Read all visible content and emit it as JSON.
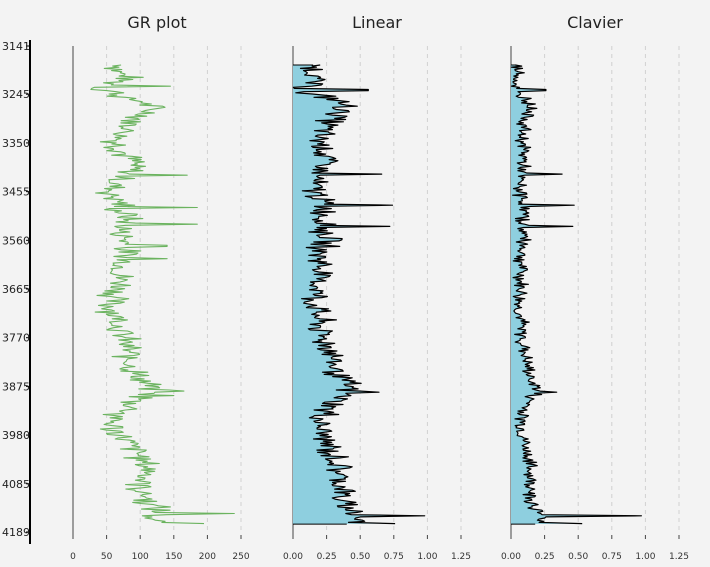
{
  "chart_data": {
    "type": "line",
    "depth_axis": {
      "range": [
        3141,
        4189
      ],
      "reversed": true,
      "tick_labels": [
        "3141",
        "3245",
        "3350",
        "3455",
        "3560",
        "3665",
        "3770",
        "3875",
        "3980",
        "4085",
        "4189"
      ],
      "ticks": [
        3141,
        3245,
        3350,
        3455,
        3560,
        3665,
        3770,
        3875,
        3980,
        4085,
        4189
      ]
    },
    "panels": [
      {
        "title": "GR plot",
        "xlim": [
          0,
          250
        ],
        "x_ticks": [
          0,
          50,
          100,
          150,
          200,
          250
        ],
        "x_tick_labels": [
          "0",
          "50",
          "100",
          "150",
          "200",
          "250"
        ],
        "line_color": "#6bb35f",
        "fill": false,
        "grid": "vertical dashed",
        "profile": [
          {
            "depth": 3182,
            "value": 72
          },
          {
            "depth": 3196,
            "value": 68
          },
          {
            "depth": 3210,
            "value": 80
          },
          {
            "depth": 3224,
            "value": 60
          },
          {
            "depth": 3232,
            "value": 30
          },
          {
            "depth": 3240,
            "value": 62
          },
          {
            "depth": 3252,
            "value": 70
          },
          {
            "depth": 3262,
            "value": 108
          },
          {
            "depth": 3276,
            "value": 115
          },
          {
            "depth": 3290,
            "value": 110
          },
          {
            "depth": 3306,
            "value": 85
          },
          {
            "depth": 3325,
            "value": 80
          },
          {
            "depth": 3345,
            "value": 65
          },
          {
            "depth": 3368,
            "value": 72
          },
          {
            "depth": 3390,
            "value": 90
          },
          {
            "depth": 3410,
            "value": 85
          },
          {
            "depth": 3430,
            "value": 70
          },
          {
            "depth": 3445,
            "value": 60
          },
          {
            "depth": 3460,
            "value": 55
          },
          {
            "depth": 3478,
            "value": 72
          },
          {
            "depth": 3495,
            "value": 65
          },
          {
            "depth": 3510,
            "value": 85
          },
          {
            "depth": 3525,
            "value": 75
          },
          {
            "depth": 3545,
            "value": 70
          },
          {
            "depth": 3560,
            "value": 80
          },
          {
            "depth": 3580,
            "value": 75
          },
          {
            "depth": 3600,
            "value": 78
          },
          {
            "depth": 3625,
            "value": 70
          },
          {
            "depth": 3645,
            "value": 72
          },
          {
            "depth": 3662,
            "value": 72
          },
          {
            "depth": 3680,
            "value": 60
          },
          {
            "depth": 3700,
            "value": 55
          },
          {
            "depth": 3720,
            "value": 65
          },
          {
            "depth": 3745,
            "value": 70
          },
          {
            "depth": 3765,
            "value": 72
          },
          {
            "depth": 3790,
            "value": 82
          },
          {
            "depth": 3812,
            "value": 82
          },
          {
            "depth": 3838,
            "value": 88
          },
          {
            "depth": 3860,
            "value": 100
          },
          {
            "depth": 3878,
            "value": 118
          },
          {
            "depth": 3892,
            "value": 110
          },
          {
            "depth": 3910,
            "value": 90
          },
          {
            "depth": 3925,
            "value": 85
          },
          {
            "depth": 3940,
            "value": 65
          },
          {
            "depth": 3955,
            "value": 55
          },
          {
            "depth": 3975,
            "value": 65
          },
          {
            "depth": 3995,
            "value": 80
          },
          {
            "depth": 4015,
            "value": 95
          },
          {
            "depth": 4040,
            "value": 105
          },
          {
            "depth": 4060,
            "value": 115
          },
          {
            "depth": 4080,
            "value": 105
          },
          {
            "depth": 4095,
            "value": 100
          },
          {
            "depth": 4110,
            "value": 108
          },
          {
            "depth": 4125,
            "value": 110
          },
          {
            "depth": 4140,
            "value": 125
          },
          {
            "depth": 4160,
            "value": 120
          },
          {
            "depth": 4172,
            "value": 115
          }
        ],
        "spikes": [
          {
            "depth": 3232,
            "value": 28
          },
          {
            "depth": 3228,
            "value": 145
          },
          {
            "depth": 3420,
            "value": 170
          },
          {
            "depth": 3490,
            "value": 185
          },
          {
            "depth": 3525,
            "value": 185
          },
          {
            "depth": 3572,
            "value": 140
          },
          {
            "depth": 3600,
            "value": 140
          },
          {
            "depth": 3885,
            "value": 165
          },
          {
            "depth": 3895,
            "value": 150
          },
          {
            "depth": 3936,
            "value": 45
          },
          {
            "depth": 4150,
            "value": 240
          },
          {
            "depth": 4172,
            "value": 195
          }
        ]
      },
      {
        "title": "Linear",
        "xlim": [
          0,
          1.25
        ],
        "x_ticks": [
          0,
          0.25,
          0.5,
          0.75,
          1.0,
          1.25
        ],
        "x_tick_labels": [
          "0.00",
          "0.25",
          "0.50",
          "0.75",
          "1.00",
          "1.25"
        ],
        "line_color": "#000000",
        "fill": true,
        "fill_color": "#8ecfdf",
        "grid": "vertical dashed",
        "profile": [
          {
            "depth": 3182,
            "value": 0.15
          },
          {
            "depth": 3200,
            "value": 0.17
          },
          {
            "depth": 3220,
            "value": 0.15
          },
          {
            "depth": 3240,
            "value": 0.02
          },
          {
            "depth": 3255,
            "value": 0.32
          },
          {
            "depth": 3270,
            "value": 0.38
          },
          {
            "depth": 3290,
            "value": 0.35
          },
          {
            "depth": 3310,
            "value": 0.25
          },
          {
            "depth": 3335,
            "value": 0.2
          },
          {
            "depth": 3360,
            "value": 0.22
          },
          {
            "depth": 3385,
            "value": 0.25
          },
          {
            "depth": 3410,
            "value": 0.2
          },
          {
            "depth": 3440,
            "value": 0.15
          },
          {
            "depth": 3470,
            "value": 0.2
          },
          {
            "depth": 3500,
            "value": 0.25
          },
          {
            "depth": 3530,
            "value": 0.22
          },
          {
            "depth": 3560,
            "value": 0.25
          },
          {
            "depth": 3590,
            "value": 0.2
          },
          {
            "depth": 3620,
            "value": 0.22
          },
          {
            "depth": 3650,
            "value": 0.18
          },
          {
            "depth": 3665,
            "value": 0.2
          },
          {
            "depth": 3690,
            "value": 0.15
          },
          {
            "depth": 3715,
            "value": 0.18
          },
          {
            "depth": 3745,
            "value": 0.2
          },
          {
            "depth": 3770,
            "value": 0.22
          },
          {
            "depth": 3800,
            "value": 0.3
          },
          {
            "depth": 3830,
            "value": 0.3
          },
          {
            "depth": 3855,
            "value": 0.35
          },
          {
            "depth": 3880,
            "value": 0.42
          },
          {
            "depth": 3900,
            "value": 0.35
          },
          {
            "depth": 3925,
            "value": 0.25
          },
          {
            "depth": 3950,
            "value": 0.2
          },
          {
            "depth": 3975,
            "value": 0.22
          },
          {
            "depth": 4000,
            "value": 0.25
          },
          {
            "depth": 4025,
            "value": 0.3
          },
          {
            "depth": 4050,
            "value": 0.35
          },
          {
            "depth": 4075,
            "value": 0.35
          },
          {
            "depth": 4100,
            "value": 0.38
          },
          {
            "depth": 4125,
            "value": 0.35
          },
          {
            "depth": 4145,
            "value": 0.45
          },
          {
            "depth": 4165,
            "value": 0.5
          },
          {
            "depth": 4172,
            "value": 0.4
          }
        ],
        "spikes": [
          {
            "depth": 3236,
            "value": 0.56
          },
          {
            "depth": 3418,
            "value": 0.66
          },
          {
            "depth": 3485,
            "value": 0.74
          },
          {
            "depth": 3530,
            "value": 0.72
          },
          {
            "depth": 3888,
            "value": 0.64
          },
          {
            "depth": 4153,
            "value": 0.98
          },
          {
            "depth": 4172,
            "value": 0.76
          }
        ]
      },
      {
        "title": "Clavier",
        "xlim": [
          0,
          1.25
        ],
        "x_ticks": [
          0,
          0.25,
          0.5,
          0.75,
          1.0,
          1.25
        ],
        "x_tick_labels": [
          "0.00",
          "0.25",
          "0.50",
          "0.75",
          "1.00",
          "1.25"
        ],
        "line_color": "#000000",
        "fill": true,
        "fill_color": "#8ecfdf",
        "grid": "vertical dashed",
        "profile": [
          {
            "depth": 3182,
            "value": 0.04
          },
          {
            "depth": 3200,
            "value": 0.06
          },
          {
            "depth": 3220,
            "value": 0.04
          },
          {
            "depth": 3240,
            "value": 0.03
          },
          {
            "depth": 3255,
            "value": 0.12
          },
          {
            "depth": 3270,
            "value": 0.15
          },
          {
            "depth": 3290,
            "value": 0.13
          },
          {
            "depth": 3310,
            "value": 0.1
          },
          {
            "depth": 3335,
            "value": 0.08
          },
          {
            "depth": 3360,
            "value": 0.09
          },
          {
            "depth": 3385,
            "value": 0.1
          },
          {
            "depth": 3410,
            "value": 0.08
          },
          {
            "depth": 3440,
            "value": 0.06
          },
          {
            "depth": 3470,
            "value": 0.08
          },
          {
            "depth": 3500,
            "value": 0.1
          },
          {
            "depth": 3530,
            "value": 0.09
          },
          {
            "depth": 3560,
            "value": 0.1
          },
          {
            "depth": 3590,
            "value": 0.08
          },
          {
            "depth": 3620,
            "value": 0.08
          },
          {
            "depth": 3650,
            "value": 0.07
          },
          {
            "depth": 3665,
            "value": 0.08
          },
          {
            "depth": 3690,
            "value": 0.06
          },
          {
            "depth": 3715,
            "value": 0.06
          },
          {
            "depth": 3745,
            "value": 0.08
          },
          {
            "depth": 3770,
            "value": 0.08
          },
          {
            "depth": 3800,
            "value": 0.1
          },
          {
            "depth": 3830,
            "value": 0.12
          },
          {
            "depth": 3855,
            "value": 0.14
          },
          {
            "depth": 3880,
            "value": 0.2
          },
          {
            "depth": 3900,
            "value": 0.15
          },
          {
            "depth": 3925,
            "value": 0.1
          },
          {
            "depth": 3950,
            "value": 0.08
          },
          {
            "depth": 3975,
            "value": 0.09
          },
          {
            "depth": 4000,
            "value": 0.1
          },
          {
            "depth": 4025,
            "value": 0.12
          },
          {
            "depth": 4050,
            "value": 0.14
          },
          {
            "depth": 4075,
            "value": 0.14
          },
          {
            "depth": 4100,
            "value": 0.16
          },
          {
            "depth": 4125,
            "value": 0.14
          },
          {
            "depth": 4145,
            "value": 0.2
          },
          {
            "depth": 4165,
            "value": 0.25
          },
          {
            "depth": 4172,
            "value": 0.18
          }
        ],
        "spikes": [
          {
            "depth": 3236,
            "value": 0.26
          },
          {
            "depth": 3418,
            "value": 0.38
          },
          {
            "depth": 3485,
            "value": 0.47
          },
          {
            "depth": 3530,
            "value": 0.46
          },
          {
            "depth": 3888,
            "value": 0.34
          },
          {
            "depth": 4153,
            "value": 0.97
          },
          {
            "depth": 4172,
            "value": 0.53
          }
        ]
      }
    ]
  }
}
